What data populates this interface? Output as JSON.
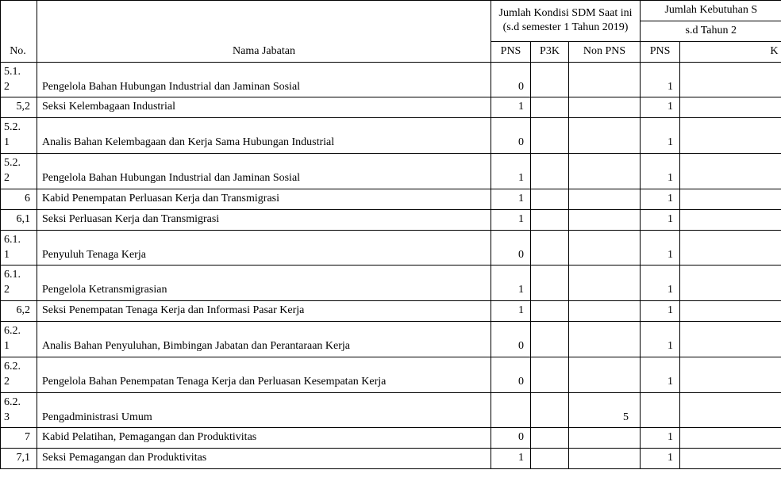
{
  "header": {
    "no": "No.",
    "nama": "Nama Jabatan",
    "kondisi_group": "Jumlah Kondisi SDM Saat ini\n(s.d semester 1 Tahun 2019)",
    "kebutuhan_group": "Jumlah Kebutuhan S",
    "kebutuhan_sub": "s.d Tahun 2",
    "pns": "PNS",
    "p3k": "P3K",
    "non_pns": "Non PNS",
    "pns2": "PNS",
    "x": "K"
  },
  "rows": [
    {
      "no": "5.1.2",
      "nama": "Pengelola Bahan Hubungan Industrial dan Jaminan Sosial",
      "pns": "0",
      "p3k": "",
      "non": "",
      "pns2": "1",
      "x": "",
      "multiline_no": true
    },
    {
      "no": "5,2",
      "nama": "Seksi Kelembagaan Industrial",
      "pns": "1",
      "p3k": "",
      "non": "",
      "pns2": "1",
      "x": ""
    },
    {
      "no": "5.2.1",
      "nama": "Analis Bahan Kelembagaan dan Kerja Sama Hubungan Industrial",
      "pns": "0",
      "p3k": "",
      "non": "",
      "pns2": "1",
      "x": "",
      "multiline_no": true
    },
    {
      "no": "5.2.2",
      "nama": "Pengelola Bahan Hubungan Industrial dan Jaminan Sosial",
      "pns": "1",
      "p3k": "",
      "non": "",
      "pns2": "1",
      "x": "",
      "multiline_no": true
    },
    {
      "no": "6",
      "nama": "Kabid Penempatan Perluasan Kerja dan Transmigrasi",
      "pns": "1",
      "p3k": "",
      "non": "",
      "pns2": "1",
      "x": ""
    },
    {
      "no": "6,1",
      "nama": "Seksi Perluasan Kerja dan Transmigrasi",
      "pns": "1",
      "p3k": "",
      "non": "",
      "pns2": "1",
      "x": ""
    },
    {
      "no": "6.1.1",
      "nama": "Penyuluh Tenaga Kerja",
      "pns": "0",
      "p3k": "",
      "non": "",
      "pns2": "1",
      "x": "",
      "multiline_no": true
    },
    {
      "no": "6.1.2",
      "nama": "Pengelola Ketransmigrasian",
      "pns": "1",
      "p3k": "",
      "non": "",
      "pns2": "1",
      "x": "",
      "multiline_no": true
    },
    {
      "no": "6,2",
      "nama": "Seksi Penempatan Tenaga Kerja dan Informasi Pasar Kerja",
      "pns": "1",
      "p3k": "",
      "non": "",
      "pns2": "1",
      "x": ""
    },
    {
      "no": "6.2.1",
      "nama": "Analis Bahan Penyuluhan, Bimbingan Jabatan dan Perantaraan Kerja",
      "pns": "0",
      "p3k": "",
      "non": "",
      "pns2": "1",
      "x": "",
      "multiline_no": true
    },
    {
      "no": "6.2.2",
      "nama": "Pengelola Bahan Penempatan Tenaga Kerja dan Perluasan Kesempatan Kerja",
      "pns": "0",
      "p3k": "",
      "non": "",
      "pns2": "1",
      "x": "",
      "multiline_no": true
    },
    {
      "no": "6.2.3",
      "nama": "Pengadministrasi Umum",
      "pns": "",
      "p3k": "",
      "non": "5",
      "pns2": "",
      "x": "",
      "multiline_no": true
    },
    {
      "no": "7",
      "nama": "Kabid Pelatihan, Pemagangan dan Produktivitas",
      "pns": "0",
      "p3k": "",
      "non": "",
      "pns2": "1",
      "x": ""
    },
    {
      "no": "7,1",
      "nama": "Seksi Pemagangan dan Produktivitas",
      "pns": "1",
      "p3k": "",
      "non": "",
      "pns2": "1",
      "x": ""
    }
  ]
}
